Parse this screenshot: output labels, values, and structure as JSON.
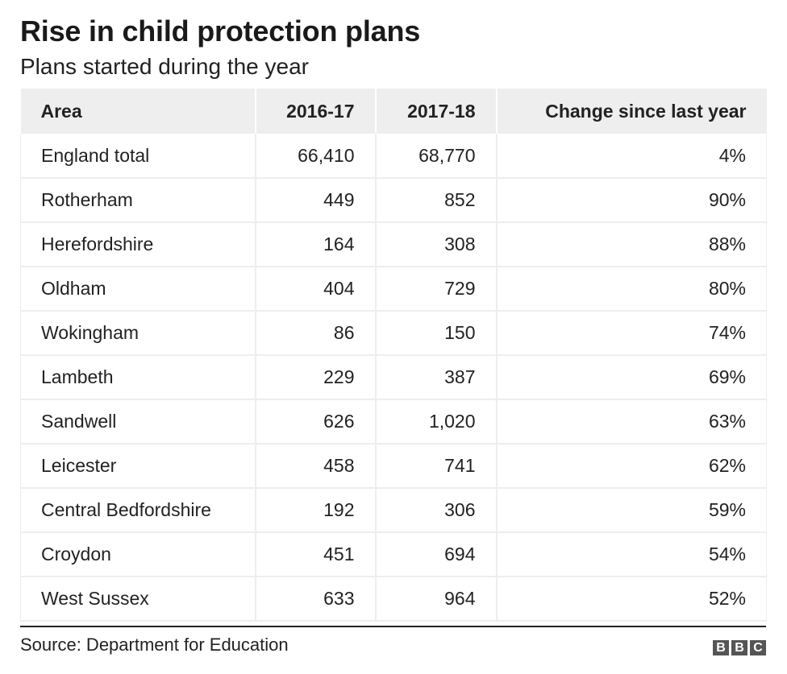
{
  "title": "Rise in child protection plans",
  "subtitle": "Plans started during the year",
  "source": "Source: Department for Education",
  "logo_letters": [
    "B",
    "B",
    "C"
  ],
  "chart_data": {
    "type": "table",
    "title": "Rise in child protection plans",
    "subtitle": "Plans started during the year",
    "columns": [
      "Area",
      "2016-17",
      "2017-18",
      "Change since last year"
    ],
    "rows": [
      {
        "area": "England total",
        "y2016_17": "66,410",
        "y2017_18": "68,770",
        "change": "4%"
      },
      {
        "area": "Rotherham",
        "y2016_17": "449",
        "y2017_18": "852",
        "change": "90%"
      },
      {
        "area": "Herefordshire",
        "y2016_17": "164",
        "y2017_18": "308",
        "change": "88%"
      },
      {
        "area": "Oldham",
        "y2016_17": "404",
        "y2017_18": "729",
        "change": "80%"
      },
      {
        "area": "Wokingham",
        "y2016_17": "86",
        "y2017_18": "150",
        "change": "74%"
      },
      {
        "area": "Lambeth",
        "y2016_17": "229",
        "y2017_18": "387",
        "change": "69%"
      },
      {
        "area": "Sandwell",
        "y2016_17": "626",
        "y2017_18": "1,020",
        "change": "63%"
      },
      {
        "area": "Leicester",
        "y2016_17": "458",
        "y2017_18": "741",
        "change": "62%"
      },
      {
        "area": "Central Bedfordshire",
        "y2016_17": "192",
        "y2017_18": "306",
        "change": "59%"
      },
      {
        "area": "Croydon",
        "y2016_17": "451",
        "y2017_18": "694",
        "change": "54%"
      },
      {
        "area": "West Sussex",
        "y2016_17": "633",
        "y2017_18": "964",
        "change": "52%"
      }
    ],
    "source": "Source: Department for Education"
  }
}
